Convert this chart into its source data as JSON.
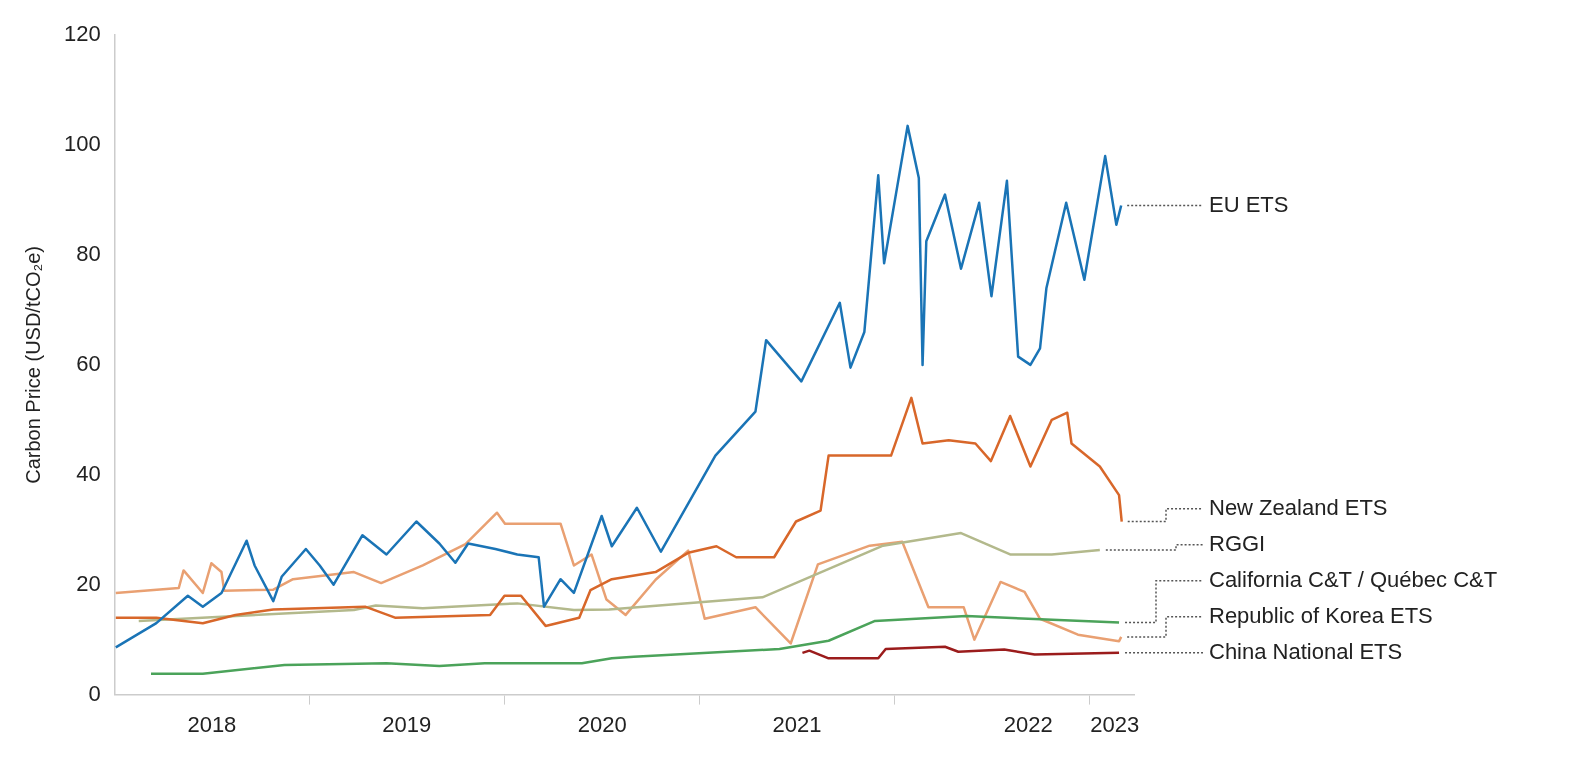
{
  "chart_data": {
    "type": "line",
    "ylabel": "Carbon Price (USD/tCO₂e)",
    "xlim": [
      "2018-01-01",
      "2023-03-25"
    ],
    "xticks": [
      {
        "value": "2018-07-02",
        "label": "2018"
      },
      {
        "value": "2019-01-01",
        "label": null
      },
      {
        "value": "2019-07-02",
        "label": "2019"
      },
      {
        "value": "2020-01-01",
        "label": null
      },
      {
        "value": "2020-07-02",
        "label": "2020"
      },
      {
        "value": "2021-01-01",
        "label": null
      },
      {
        "value": "2021-07-02",
        "label": "2021"
      },
      {
        "value": "2022-01-01",
        "label": null
      },
      {
        "value": "2022-09-08",
        "label": "2022"
      },
      {
        "value": "2023-01-01",
        "label": null
      },
      {
        "value": "2023-02-17",
        "label": "2023"
      }
    ],
    "ylim": [
      0,
      120
    ],
    "yticks": [
      0,
      20,
      40,
      60,
      80,
      100,
      120
    ],
    "series": [
      {
        "name": "EU ETS",
        "color": "#1a74b6",
        "x": [
          "2018-01-03",
          "2018-03-20",
          "2018-05-18",
          "2018-06-15",
          "2018-07-20",
          "2018-09-05",
          "2018-09-20",
          "2018-10-25",
          "2018-11-10",
          "2018-12-25",
          "2019-01-20",
          "2019-02-15",
          "2019-04-10",
          "2019-05-25",
          "2019-07-20",
          "2019-09-01",
          "2019-10-01",
          "2019-10-25",
          "2019-12-15",
          "2020-01-25",
          "2020-03-05",
          "2020-03-15",
          "2020-04-15",
          "2020-05-10",
          "2020-07-01",
          "2020-07-20",
          "2020-09-05",
          "2020-10-20",
          "2021-01-30",
          "2021-04-15",
          "2021-05-05",
          "2021-07-10",
          "2021-09-20",
          "2021-10-10",
          "2021-11-05",
          "2021-12-01",
          "2021-12-12",
          "2022-01-25",
          "2022-02-15",
          "2022-02-22",
          "2022-03-01",
          "2022-04-05",
          "2022-05-05",
          "2022-06-08",
          "2022-07-01",
          "2022-07-30",
          "2022-08-20",
          "2022-09-12",
          "2022-09-30",
          "2022-10-12",
          "2022-11-18",
          "2022-12-22",
          "2023-01-30",
          "2023-02-20",
          "2023-03-01"
        ],
        "values": [
          8.6,
          13,
          18,
          16,
          18.5,
          28,
          23.5,
          17,
          21.5,
          26.5,
          23.5,
          20,
          29,
          25.5,
          31.5,
          27.5,
          24,
          27.5,
          26.5,
          25.5,
          25,
          16,
          21,
          18.5,
          32.5,
          27,
          34,
          26,
          43.5,
          51.5,
          64.5,
          57,
          71.3,
          59.5,
          66,
          94.5,
          78.5,
          103.5,
          94,
          60,
          82.5,
          91,
          77.5,
          89.5,
          72.5,
          93.5,
          61.5,
          60,
          63,
          74,
          89.5,
          75.5,
          98,
          85.5,
          89
        ]
      },
      {
        "name": "New Zealand ETS",
        "color": "#d8672a",
        "x": [
          "2018-01-03",
          "2018-03-20",
          "2018-06-15",
          "2018-08-15",
          "2018-10-25",
          "2019-04-15",
          "2019-06-10",
          "2019-12-05",
          "2020-01-01",
          "2020-02-01",
          "2020-03-18",
          "2020-05-20",
          "2020-06-10",
          "2020-07-20",
          "2020-10-10",
          "2020-12-10",
          "2021-02-01",
          "2021-03-10",
          "2021-05-20",
          "2021-06-30",
          "2021-08-15",
          "2021-08-30",
          "2021-12-25",
          "2022-02-01",
          "2022-02-22",
          "2022-04-12",
          "2022-06-01",
          "2022-06-30",
          "2022-08-05",
          "2022-09-12",
          "2022-10-22",
          "2022-11-20",
          "2022-11-28",
          "2023-01-20",
          "2023-02-25",
          "2023-03-02"
        ],
        "values": [
          14,
          14,
          13,
          14.5,
          15.5,
          16,
          14,
          14.5,
          18,
          18,
          12.5,
          14,
          19,
          21,
          22.3,
          25.8,
          27,
          25,
          25,
          31.5,
          33.5,
          43.5,
          43.5,
          54,
          45.7,
          46.3,
          45.7,
          42.5,
          50.7,
          41.5,
          50,
          51.3,
          45.7,
          41.5,
          36.3,
          31.5
        ]
      },
      {
        "name": "RGGI",
        "color": "#b3b98c",
        "x": [
          "2018-02-15",
          "2019-03-25",
          "2019-05-05",
          "2019-08-01",
          "2020-01-25",
          "2020-05-10",
          "2020-07-15",
          "2021-04-28",
          "2021-12-10",
          "2022-05-05",
          "2022-08-05",
          "2022-10-22",
          "2023-01-20"
        ],
        "values": [
          13.4,
          15.4,
          16.2,
          15.7,
          16.6,
          15.4,
          15.5,
          17.7,
          27.1,
          29.4,
          25.5,
          25.5,
          26.3
        ]
      },
      {
        "name": "California C&T / Québec C&T",
        "color": "#4ba35a",
        "x": [
          "2018-03-10",
          "2018-06-15",
          "2018-11-15",
          "2019-05-25",
          "2019-09-01",
          "2019-11-25",
          "2020-05-25",
          "2020-07-20",
          "2020-08-30",
          "2021-05-30",
          "2021-08-30",
          "2021-11-25",
          "2022-05-15",
          "2023-02-25"
        ],
        "values": [
          3.8,
          3.8,
          5.4,
          5.7,
          5.2,
          5.7,
          5.7,
          6.6,
          6.9,
          8.3,
          9.8,
          13.4,
          14.3,
          13.1
        ]
      },
      {
        "name": "Republic of Korea ETS",
        "color": "#e9a072",
        "x": [
          "2018-01-03",
          "2018-05-01",
          "2018-05-10",
          "2018-06-15",
          "2018-07-01",
          "2018-07-20",
          "2018-07-25",
          "2018-10-25",
          "2018-12-01",
          "2019-03-25",
          "2019-05-15",
          "2019-08-01",
          "2019-10-20",
          "2019-12-18",
          "2020-01-02",
          "2020-04-15",
          "2020-05-10",
          "2020-06-12",
          "2020-07-10",
          "2020-08-15",
          "2020-10-10",
          "2020-12-10",
          "2021-01-10",
          "2021-04-15",
          "2021-06-20",
          "2021-08-10",
          "2021-11-15",
          "2022-01-15",
          "2022-03-05",
          "2022-05-10",
          "2022-05-30",
          "2022-07-18",
          "2022-09-01",
          "2022-09-30",
          "2022-12-10",
          "2023-02-25",
          "2023-03-01"
        ],
        "values": [
          18.5,
          19.4,
          22.6,
          18.5,
          23.9,
          22.3,
          18.9,
          19.1,
          21,
          22.3,
          20.3,
          23.5,
          27.4,
          33.1,
          31.1,
          31.1,
          23.5,
          25.5,
          17.3,
          14.5,
          20.9,
          26.2,
          13.8,
          15.9,
          9.3,
          23.7,
          27.1,
          27.8,
          15.9,
          15.9,
          10,
          20.5,
          18.7,
          13.8,
          10.9,
          9.7,
          10.5
        ]
      },
      {
        "name": "China National ETS",
        "color": "#9b1c1c",
        "x": [
          "2021-07-12",
          "2021-07-25",
          "2021-08-30",
          "2021-12-01",
          "2021-12-15",
          "2022-04-05",
          "2022-04-30",
          "2022-07-25",
          "2022-09-20",
          "2023-02-25"
        ],
        "values": [
          7.6,
          8,
          6.6,
          6.6,
          8.3,
          8.7,
          7.8,
          8.2,
          7.3,
          7.6
        ]
      }
    ]
  }
}
